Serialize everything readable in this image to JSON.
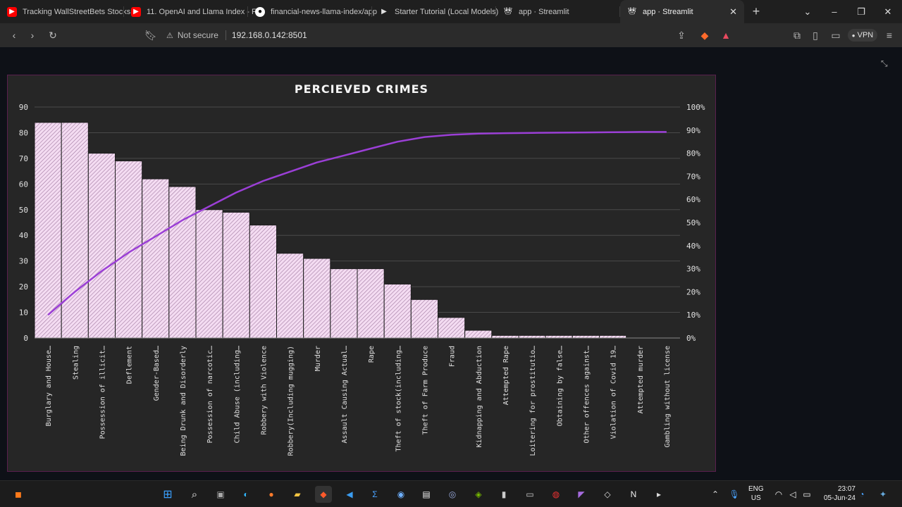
{
  "browser": {
    "tabs": [
      {
        "label": "Tracking WallStreetBets Stocks",
        "icon": "youtube-icon"
      },
      {
        "label": "11. OpenAI and Llama Index - F",
        "icon": "youtube-icon"
      },
      {
        "label": "financial-news-llama-index/app",
        "icon": "github-icon"
      },
      {
        "label": "Starter Tutorial (Local Models)",
        "icon": "llamaindex-icon"
      },
      {
        "label": "app · Streamlit",
        "icon": "streamlit-icon"
      },
      {
        "label": "app · Streamlit",
        "icon": "streamlit-icon",
        "active": true
      }
    ],
    "address": {
      "security": "Not secure",
      "url": "192.168.0.142:8501"
    },
    "vpn_label": "VPN"
  },
  "chart_data": {
    "type": "bar",
    "title": "PERCIEVED CRIMES",
    "categories": [
      "Burglary and House…",
      "Stealing",
      "Possession of  illicit…",
      "Deflement",
      "Gender-Based…",
      "Being Drunk and Disorderly",
      "Possession of narcotic…",
      "Child Abuse (including…",
      "Robbery with Violence",
      "Robbery(Including mugging)",
      "Murder",
      "Assault Causing Actual…",
      "Rape",
      "Theft of stock(including…",
      "Theft of Farm Produce",
      "Fraud",
      "Kidnapping and Abduction",
      "Attempted Rape",
      "Loitering for prostitutio…",
      "Obtaining by false…",
      "Other offences against…",
      "Violation of Covid 19…",
      "Attempted murder",
      "Gambling without license"
    ],
    "values": [
      84,
      84,
      72,
      69,
      62,
      59,
      50,
      49,
      44,
      33,
      31,
      27,
      27,
      21,
      15,
      8,
      3,
      1,
      1,
      1,
      1,
      1,
      0,
      0
    ],
    "cumulative_percent": [
      10,
      20,
      29,
      37,
      44,
      51,
      57,
      63,
      68,
      72,
      76,
      79,
      82,
      85,
      87,
      88,
      88.5,
      88.7,
      88.8,
      88.9,
      89,
      89.1,
      89.2,
      89.2
    ],
    "ylim": [
      0,
      90
    ],
    "y_ticks": [
      "0",
      "10",
      "20",
      "30",
      "40",
      "50",
      "60",
      "70",
      "80",
      "90"
    ],
    "y2lim": [
      0,
      100
    ],
    "y2_ticks": [
      "0%",
      "10%",
      "20%",
      "30%",
      "40%",
      "50%",
      "60%",
      "70%",
      "80%",
      "90%",
      "100%"
    ],
    "bar_color": "#f2d6f0",
    "line_color": "#9b3fd6",
    "grid": true
  },
  "taskbar": {
    "language": "ENG",
    "region": "US",
    "time": "23:07",
    "date": "05-Jun-24"
  }
}
